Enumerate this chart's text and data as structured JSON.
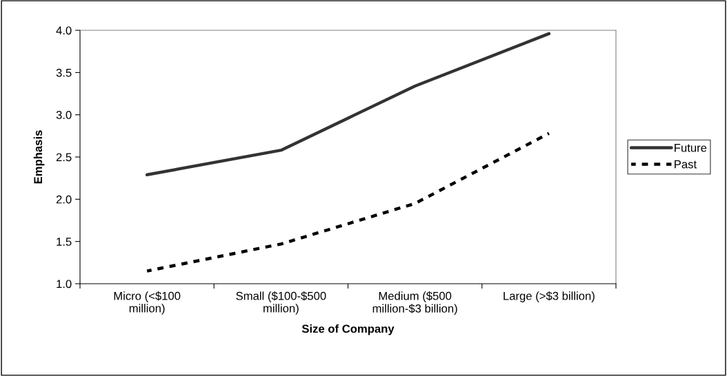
{
  "chart_data": {
    "type": "line",
    "xlabel": "Size of Company",
    "ylabel": "Emphasis",
    "categories": [
      "Micro (<$100\nmillion)",
      "Small ($100-$500\nmillion)",
      "Medium ($500\nmillion-$3 billion)",
      "Large (>$3 billion)"
    ],
    "series": [
      {
        "name": "Future",
        "color": "#333333",
        "line_style": "solid",
        "values": [
          2.29,
          2.58,
          3.34,
          3.96
        ]
      },
      {
        "name": "Past",
        "color": "#000000",
        "line_style": "dashed",
        "values": [
          1.15,
          1.47,
          1.95,
          2.78
        ]
      }
    ],
    "ylim": [
      1.0,
      4.0
    ],
    "yticks": [
      {
        "value": 1.0,
        "label": "1.0"
      },
      {
        "value": 1.5,
        "label": "1.5"
      },
      {
        "value": 2.0,
        "label": "2.0"
      },
      {
        "value": 2.5,
        "label": "2.5"
      },
      {
        "value": 3.0,
        "label": "3.0"
      },
      {
        "value": 3.5,
        "label": "3.5"
      },
      {
        "value": 4.0,
        "label": "4.0"
      }
    ],
    "grid": false,
    "legend": "right",
    "marker": "none"
  }
}
